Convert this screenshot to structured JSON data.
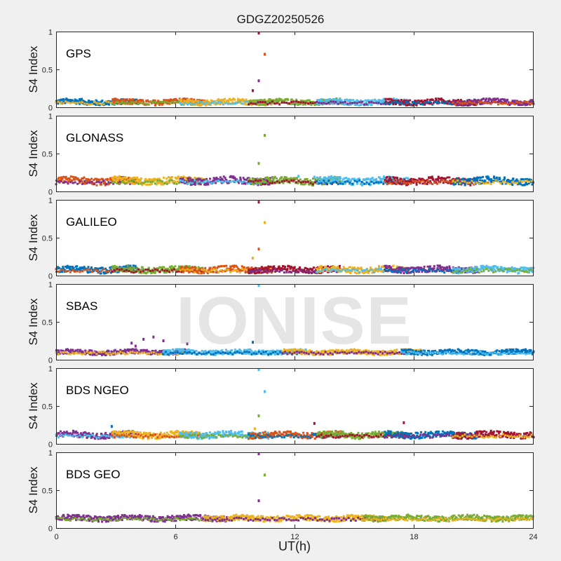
{
  "figure": {
    "title": "GDGZ20250526",
    "xlabel": "UT(h)",
    "watermark": "IONISE"
  },
  "colors": [
    "#0072bd",
    "#d95319",
    "#edb120",
    "#7e2f8e",
    "#77ac30",
    "#4dbeee",
    "#a2142f"
  ],
  "chart_data": [
    {
      "type": "scatter",
      "panel_label": "GPS",
      "ylabel": "S4 Index",
      "xlim": [
        0,
        24
      ],
      "ylim": [
        0,
        1
      ],
      "xticks": [
        0,
        6,
        12,
        18,
        24
      ],
      "yticks": [
        0,
        0.5,
        1
      ],
      "xtick_labels": [
        "",
        "",
        "",
        "",
        ""
      ],
      "series_colors": [
        0,
        1,
        2,
        4,
        5,
        6,
        3
      ],
      "baseline": 0.07,
      "band": 0.035,
      "outliers": [
        [
          10.2,
          0.98,
          6
        ],
        [
          10.5,
          0.7,
          1
        ],
        [
          10.2,
          0.35,
          3
        ],
        [
          9.9,
          0.22,
          6
        ]
      ]
    },
    {
      "type": "scatter",
      "panel_label": "GLONASS",
      "ylabel": "S4 Index",
      "xlim": [
        0,
        24
      ],
      "ylim": [
        0,
        1
      ],
      "xticks": [
        0,
        6,
        12,
        18,
        24
      ],
      "yticks": [
        0,
        0.5,
        1
      ],
      "xtick_labels": [
        "",
        "",
        "",
        "",
        ""
      ],
      "series_colors": [
        1,
        2,
        3,
        4,
        5,
        6,
        0
      ],
      "baseline": 0.14,
      "band": 0.045,
      "outliers": [
        [
          10.5,
          0.74,
          4
        ],
        [
          10.2,
          0.37,
          4
        ],
        [
          12.2,
          0.2,
          5
        ],
        [
          13.0,
          0.19,
          5
        ]
      ]
    },
    {
      "type": "scatter",
      "panel_label": "GALILEO",
      "ylabel": "S4 Index",
      "xlim": [
        0,
        24
      ],
      "ylim": [
        0,
        1
      ],
      "xticks": [
        0,
        6,
        12,
        18,
        24
      ],
      "yticks": [
        0,
        0.5,
        1
      ],
      "xtick_labels": [
        "",
        "",
        "",
        "",
        ""
      ],
      "series_colors": [
        0,
        4,
        1,
        6,
        2,
        3,
        5
      ],
      "baseline": 0.08,
      "band": 0.04,
      "outliers": [
        [
          10.2,
          0.97,
          6
        ],
        [
          10.5,
          0.7,
          2
        ],
        [
          10.2,
          0.35,
          1
        ],
        [
          9.9,
          0.23,
          2
        ]
      ]
    },
    {
      "type": "scatter",
      "panel_label": "SBAS",
      "ylabel": "S4 Index",
      "xlim": [
        0,
        24
      ],
      "ylim": [
        0,
        1
      ],
      "xticks": [
        0,
        6,
        12,
        18,
        24
      ],
      "yticks": [
        0,
        0.5,
        1
      ],
      "xtick_labels": [
        "",
        "",
        "",
        "",
        ""
      ],
      "series_colors": [
        3,
        5,
        2,
        0
      ],
      "baseline": 0.1,
      "band": 0.03,
      "outliers": [
        [
          10.2,
          0.98,
          5
        ],
        [
          9.9,
          0.23,
          0
        ],
        [
          4.4,
          0.27,
          3
        ],
        [
          4.9,
          0.3,
          3
        ],
        [
          3.8,
          0.22,
          3
        ],
        [
          5.4,
          0.25,
          3
        ],
        [
          4.0,
          0.18,
          3
        ],
        [
          6.6,
          0.21,
          3
        ]
      ]
    },
    {
      "type": "scatter",
      "panel_label": "BDS NGEO",
      "ylabel": "S4 Index",
      "xlim": [
        0,
        24
      ],
      "ylim": [
        0,
        1
      ],
      "xticks": [
        0,
        6,
        12,
        18,
        24
      ],
      "yticks": [
        0,
        0.5,
        1
      ],
      "xtick_labels": [
        "",
        "",
        "",
        "",
        ""
      ],
      "series_colors": [
        3,
        2,
        5,
        1,
        4,
        0,
        6
      ],
      "baseline": 0.12,
      "band": 0.04,
      "outliers": [
        [
          10.2,
          0.98,
          5
        ],
        [
          10.5,
          0.69,
          5
        ],
        [
          10.2,
          0.37,
          4
        ],
        [
          10.0,
          0.2,
          2
        ],
        [
          13.0,
          0.27,
          6
        ],
        [
          17.5,
          0.28,
          6
        ],
        [
          2.8,
          0.23,
          0
        ]
      ]
    },
    {
      "type": "scatter",
      "panel_label": "BDS GEO",
      "ylabel": "S4 Index",
      "xlim": [
        0,
        24
      ],
      "ylim": [
        0,
        1
      ],
      "xticks": [
        0,
        6,
        12,
        18,
        24
      ],
      "yticks": [
        0,
        0.5,
        1
      ],
      "xtick_labels": [
        "0",
        "6",
        "12",
        "18",
        "24"
      ],
      "series_colors": [
        3,
        2,
        4
      ],
      "baseline": 0.13,
      "band": 0.035,
      "outliers": [
        [
          10.2,
          0.98,
          3
        ],
        [
          10.5,
          0.7,
          4
        ],
        [
          10.2,
          0.36,
          3
        ]
      ]
    }
  ]
}
